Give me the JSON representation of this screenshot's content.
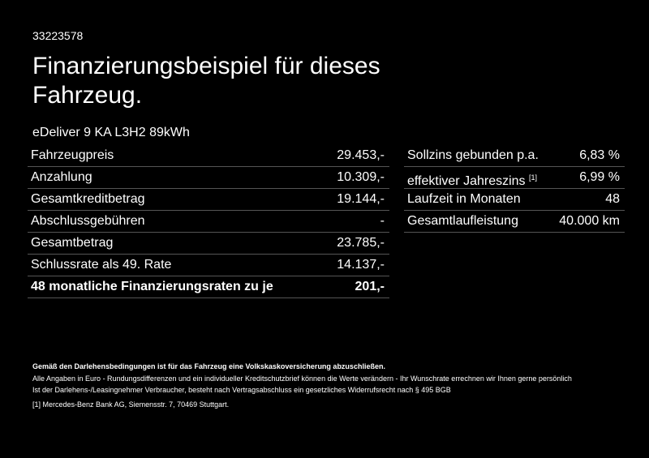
{
  "header": {
    "id": "33223578",
    "title_line1": "Finanzierungsbeispiel für dieses",
    "title_line2": "Fahrzeug.",
    "model": "eDeliver 9 KA L3H2 89kWh"
  },
  "left_table": {
    "rows": [
      [
        "Fahrzeugpreis",
        "29.453,-"
      ],
      [
        "Anzahlung",
        "10.309,-"
      ],
      [
        "Gesamtkreditbetrag",
        "19.144,-"
      ],
      [
        "Abschlussgebühren",
        "-"
      ],
      [
        "Gesamtbetrag",
        "23.785,-"
      ],
      [
        "Schlussrate als 49. Rate",
        "14.137,-"
      ],
      [
        "48 monatliche Finanzierungsraten zu je",
        "201,-"
      ]
    ]
  },
  "right_table": {
    "rows": [
      [
        "Sollzins gebunden p.a.",
        "6,83 %"
      ],
      [
        "effektiver Jahreszins",
        "6,99 %"
      ],
      [
        "Laufzeit in Monaten",
        "48"
      ],
      [
        "Gesamtlaufleistung",
        "40.000 km"
      ]
    ],
    "footnote_mark": "[1]"
  },
  "notes": {
    "bold": "Gemäß den Darlehensbedingungen ist für das Fahrzeug eine Volkskaskoversicherung abzuschließen.",
    "line1": "Alle Angaben in Euro - Rundungsdifferenzen und ein individueller Kreditschutzbrief können die Werte verändern - Ihr Wunschrate errechnen wir Ihnen gerne persönlich",
    "line2": "Ist der Darlehens-/Leasingnehmer Verbraucher, besteht nach Vertragsabschluss ein gesetzliches Widerrufsrecht nach § 495 BGB",
    "footnote_mark": "[1]",
    "footnote": "Mercedes-Benz Bank AG, Siemensstr. 7, 70469 Stuttgart."
  }
}
